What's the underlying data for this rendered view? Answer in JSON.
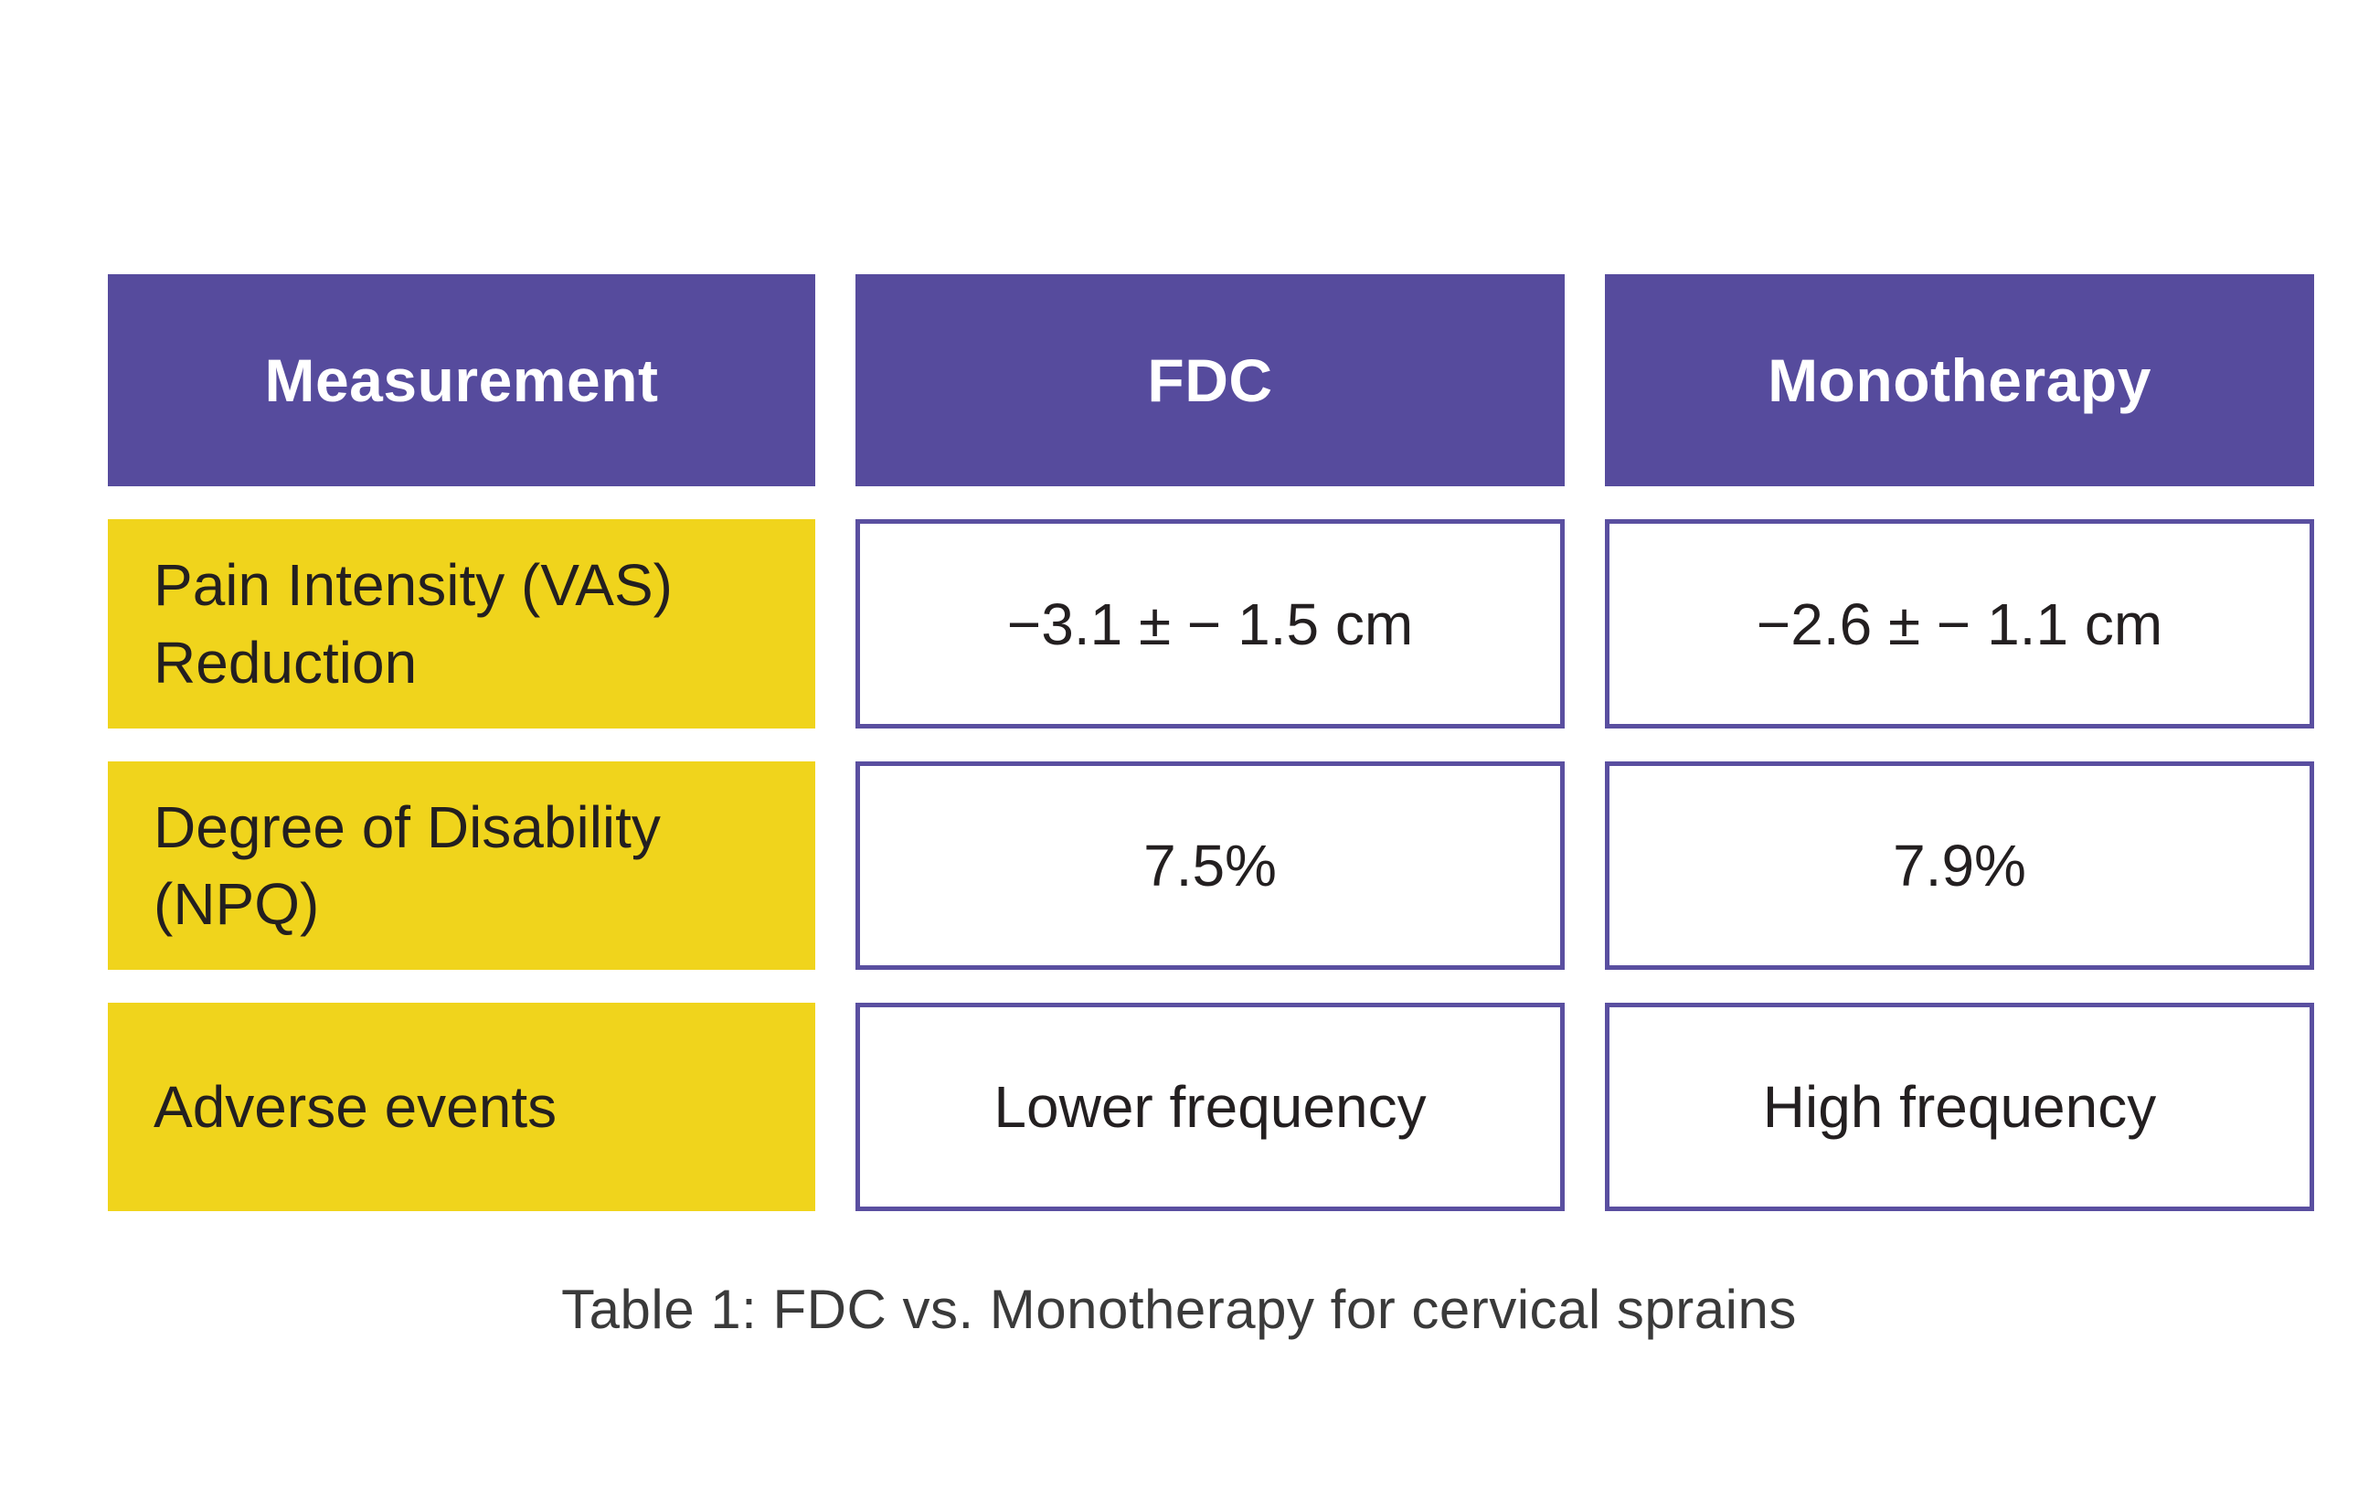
{
  "table": {
    "header": {
      "columns": [
        "Measurement",
        "FDC",
        "Monotherapy"
      ]
    },
    "rows": [
      {
        "label": "Pain Intensity (VAS) Reduction",
        "fdc": "−3.1 ± − 1.5 cm",
        "monotherapy": "−2.6 ± − 1.1 cm"
      },
      {
        "label": "Degree of Disability (NPQ)",
        "fdc": "7.5%",
        "monotherapy": "7.9%"
      },
      {
        "label": "Adverse events",
        "fdc": "Lower frequency",
        "monotherapy": "High frequency"
      }
    ],
    "caption": "Table 1: FDC vs. Monotherapy for cervical sprains"
  },
  "chart_data": {
    "type": "table",
    "title": "Table 1: FDC vs. Monotherapy for cervical sprains",
    "columns": [
      "Measurement",
      "FDC",
      "Monotherapy"
    ],
    "rows": [
      [
        "Pain Intensity (VAS) Reduction",
        "−3.1 ± − 1.5 cm",
        "−2.6 ± − 1.1 cm"
      ],
      [
        "Degree of Disability (NPQ)",
        "7.5%",
        "7.9%"
      ],
      [
        "Adverse events",
        "Lower frequency",
        "High frequency"
      ]
    ]
  },
  "colors": {
    "page_bg": "#ffffff",
    "header_bg": "#564b9d",
    "header_text": "#ffffff",
    "row_label_bg": "#f0d41c",
    "row_label_text": "#231f20",
    "data_cell_bg": "#ffffff",
    "data_cell_border": "#5a4fa0",
    "data_cell_text": "#231f20",
    "caption_text": "#3a3a3a"
  }
}
